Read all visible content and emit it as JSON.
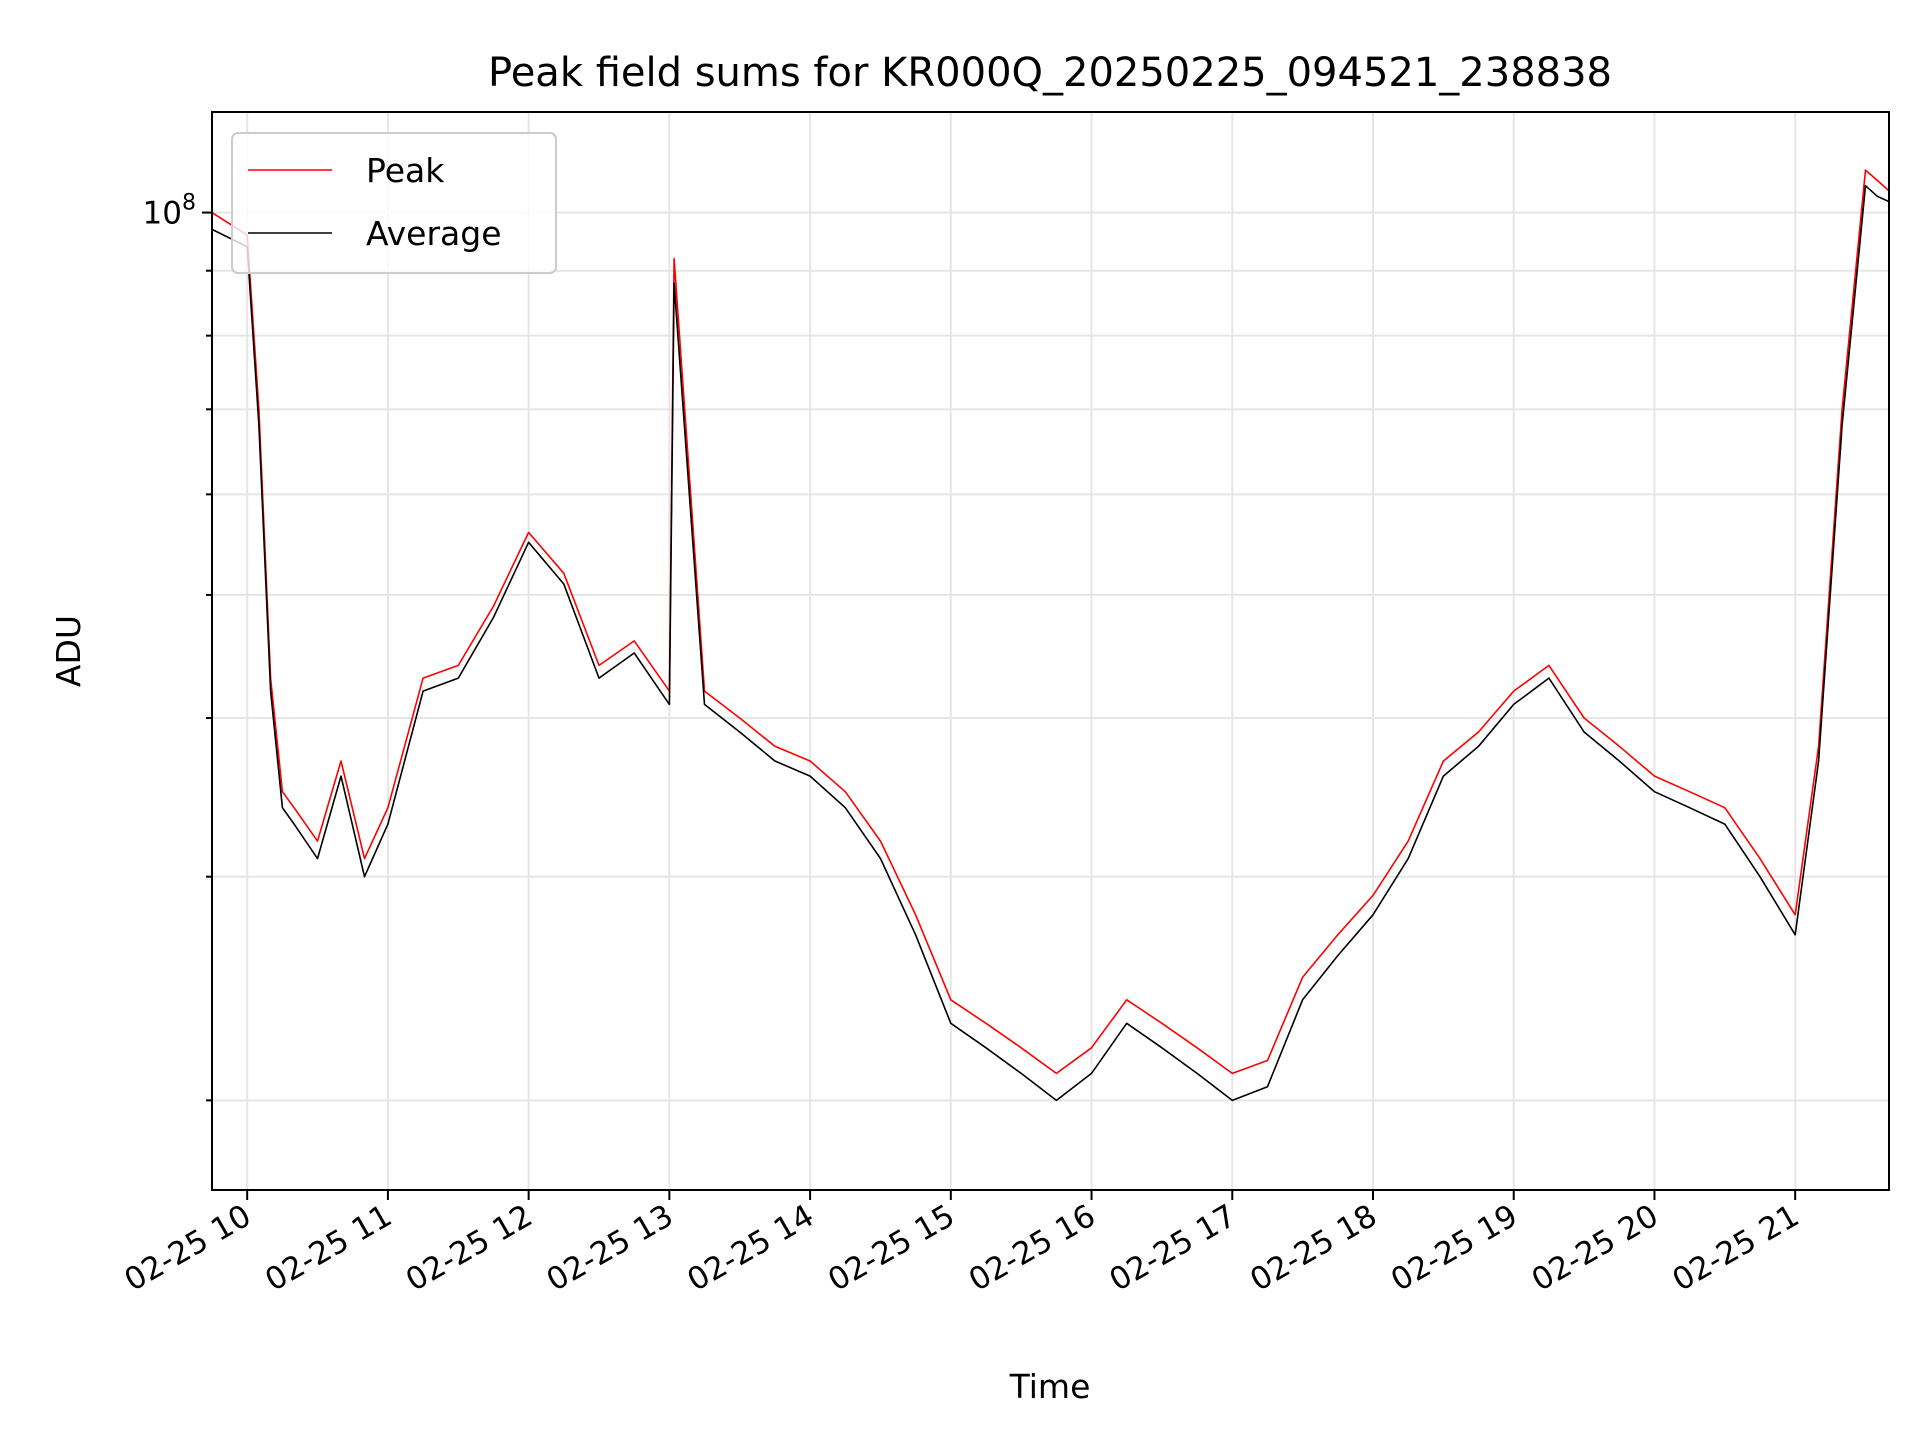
{
  "chart_data": {
    "type": "line",
    "title": "Peak field sums for KR000Q_20250225_094521_238838",
    "xlabel": "Time",
    "ylabel": "ADU",
    "y_scale": "log",
    "ylim": [
      17000000,
      120000000
    ],
    "xlim": [
      "2025-02-25 09:45",
      "2025-02-25 21:40"
    ],
    "x_tick_labels": [
      "02-25 10",
      "02-25 11",
      "02-25 12",
      "02-25 13",
      "02-25 14",
      "02-25 15",
      "02-25 16",
      "02-25 17",
      "02-25 18",
      "02-25 19",
      "02-25 20",
      "02-25 21"
    ],
    "y_tick_labels": [
      "10^8"
    ],
    "grid": true,
    "legend_position": "upper-left",
    "series": [
      {
        "name": "Peak",
        "color": "#ff0000",
        "x": [
          "2025-02-25 09:45",
          "2025-02-25 10:00",
          "2025-02-25 10:05",
          "2025-02-25 10:10",
          "2025-02-25 10:15",
          "2025-02-25 10:20",
          "2025-02-25 10:30",
          "2025-02-25 10:40",
          "2025-02-25 10:50",
          "2025-02-25 11:00",
          "2025-02-25 11:15",
          "2025-02-25 11:30",
          "2025-02-25 11:45",
          "2025-02-25 12:00",
          "2025-02-25 12:15",
          "2025-02-25 12:30",
          "2025-02-25 12:45",
          "2025-02-25 13:00",
          "2025-02-25 13:02",
          "2025-02-25 13:15",
          "2025-02-25 13:30",
          "2025-02-25 13:45",
          "2025-02-25 14:00",
          "2025-02-25 14:15",
          "2025-02-25 14:30",
          "2025-02-25 14:45",
          "2025-02-25 15:00",
          "2025-02-25 15:15",
          "2025-02-25 15:30",
          "2025-02-25 15:45",
          "2025-02-25 16:00",
          "2025-02-25 16:15",
          "2025-02-25 16:30",
          "2025-02-25 16:45",
          "2025-02-25 17:00",
          "2025-02-25 17:15",
          "2025-02-25 17:30",
          "2025-02-25 17:45",
          "2025-02-25 18:00",
          "2025-02-25 18:15",
          "2025-02-25 18:30",
          "2025-02-25 18:45",
          "2025-02-25 19:00",
          "2025-02-25 19:15",
          "2025-02-25 19:30",
          "2025-02-25 19:45",
          "2025-02-25 20:00",
          "2025-02-25 20:15",
          "2025-02-25 20:30",
          "2025-02-25 20:45",
          "2025-02-25 21:00",
          "2025-02-25 21:10",
          "2025-02-25 21:20",
          "2025-02-25 21:30",
          "2025-02-25 21:35",
          "2025-02-25 21:40"
        ],
        "values": [
          100000000,
          96000000,
          70000000,
          43000000,
          35000000,
          34000000,
          32000000,
          37000000,
          31000000,
          34000000,
          43000000,
          44000000,
          49000000,
          56000000,
          52000000,
          44000000,
          46000000,
          42000000,
          92000000,
          42000000,
          40000000,
          38000000,
          37000000,
          35000000,
          32000000,
          28000000,
          24000000,
          23000000,
          22000000,
          21000000,
          22000000,
          24000000,
          23000000,
          22000000,
          21000000,
          21500000,
          25000000,
          27000000,
          29000000,
          32000000,
          37000000,
          39000000,
          42000000,
          44000000,
          40000000,
          38000000,
          36000000,
          35000000,
          34000000,
          31000000,
          28000000,
          38000000,
          70000000,
          108000000,
          106000000,
          104000000
        ]
      },
      {
        "name": "Average",
        "color": "#000000",
        "x": [
          "2025-02-25 09:45",
          "2025-02-25 10:00",
          "2025-02-25 10:05",
          "2025-02-25 10:10",
          "2025-02-25 10:15",
          "2025-02-25 10:20",
          "2025-02-25 10:30",
          "2025-02-25 10:40",
          "2025-02-25 10:50",
          "2025-02-25 11:00",
          "2025-02-25 11:15",
          "2025-02-25 11:30",
          "2025-02-25 11:45",
          "2025-02-25 12:00",
          "2025-02-25 12:15",
          "2025-02-25 12:30",
          "2025-02-25 12:45",
          "2025-02-25 13:00",
          "2025-02-25 13:02",
          "2025-02-25 13:15",
          "2025-02-25 13:30",
          "2025-02-25 13:45",
          "2025-02-25 14:00",
          "2025-02-25 14:15",
          "2025-02-25 14:30",
          "2025-02-25 14:45",
          "2025-02-25 15:00",
          "2025-02-25 15:15",
          "2025-02-25 15:30",
          "2025-02-25 15:45",
          "2025-02-25 16:00",
          "2025-02-25 16:15",
          "2025-02-25 16:30",
          "2025-02-25 16:45",
          "2025-02-25 17:00",
          "2025-02-25 17:15",
          "2025-02-25 17:30",
          "2025-02-25 17:45",
          "2025-02-25 18:00",
          "2025-02-25 18:15",
          "2025-02-25 18:30",
          "2025-02-25 18:45",
          "2025-02-25 19:00",
          "2025-02-25 19:15",
          "2025-02-25 19:30",
          "2025-02-25 19:45",
          "2025-02-25 20:00",
          "2025-02-25 20:15",
          "2025-02-25 20:30",
          "2025-02-25 20:45",
          "2025-02-25 21:00",
          "2025-02-25 21:10",
          "2025-02-25 21:20",
          "2025-02-25 21:30",
          "2025-02-25 21:35",
          "2025-02-25 21:40"
        ],
        "values": [
          97000000,
          94000000,
          68000000,
          42000000,
          34000000,
          33000000,
          31000000,
          36000000,
          30000000,
          33000000,
          42000000,
          43000000,
          48000000,
          55000000,
          51000000,
          43000000,
          45000000,
          41000000,
          88000000,
          41000000,
          39000000,
          37000000,
          36000000,
          34000000,
          31000000,
          27000000,
          23000000,
          22000000,
          21000000,
          20000000,
          21000000,
          23000000,
          22000000,
          21000000,
          20000000,
          20500000,
          24000000,
          26000000,
          28000000,
          31000000,
          36000000,
          38000000,
          41000000,
          43000000,
          39000000,
          37000000,
          35000000,
          34000000,
          33000000,
          30000000,
          27000000,
          37000000,
          68000000,
          105000000,
          103000000,
          102000000
        ]
      }
    ]
  }
}
